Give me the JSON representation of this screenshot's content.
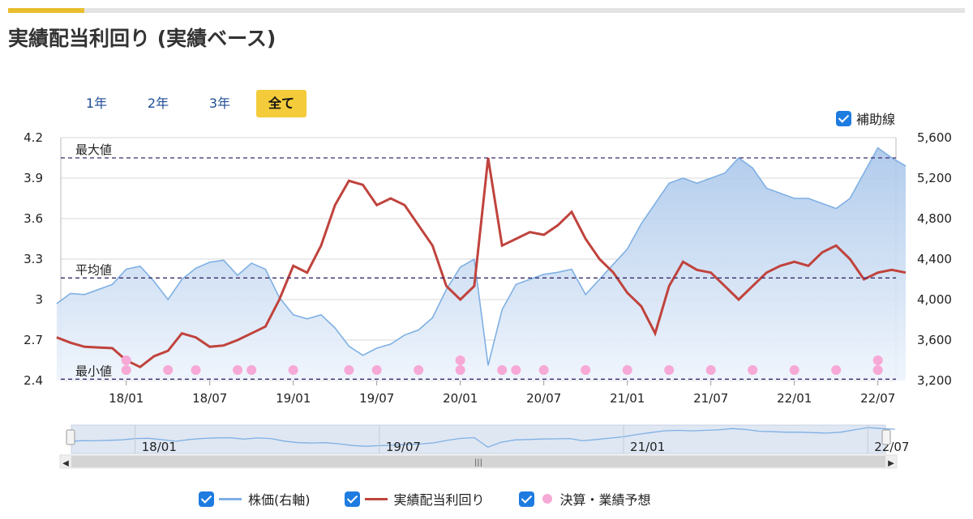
{
  "title": "実績配当利回り (実績ベース)",
  "ranges": [
    "1年",
    "2年",
    "3年",
    "全て"
  ],
  "active_range": "全て",
  "aux_line_label": "補助線",
  "legend": {
    "price": "株価(右軸)",
    "yield": "実績配当利回り",
    "earnings": "決算・業績予想"
  },
  "colors": {
    "accent": "#f4cb3a",
    "price": "#7fb0e3",
    "yield": "#c0433d",
    "earnings": "#f6a9d6",
    "checkbox": "#1e7be0"
  },
  "chart_data": {
    "type": "line",
    "x_ticks": [
      "18/01",
      "18/07",
      "19/01",
      "19/07",
      "20/01",
      "20/07",
      "21/01",
      "21/07",
      "22/01",
      "22/07"
    ],
    "y_left": {
      "label": "",
      "ticks": [
        "2.4",
        "2.7",
        "3",
        "3.3",
        "3.6",
        "3.9",
        "4.2"
      ],
      "range": [
        2.4,
        4.2
      ]
    },
    "y_right": {
      "label": "",
      "ticks": [
        "3,200",
        "3,600",
        "4,000",
        "4,400",
        "4,800",
        "5,200",
        "5,600"
      ],
      "range": [
        3200,
        5600
      ]
    },
    "grid": true,
    "reference_lines": [
      {
        "label": "最大値",
        "value": 4.05
      },
      {
        "label": "平均値",
        "value": 3.16
      },
      {
        "label": "最小値",
        "value": 2.41
      }
    ],
    "series": [
      {
        "name": "株価(右軸)",
        "axis": "right",
        "type": "area",
        "points": [
          [
            "17/08",
            3960
          ],
          [
            "17/09",
            4060
          ],
          [
            "17/10",
            4050
          ],
          [
            "17/12",
            4150
          ],
          [
            "18/01",
            4300
          ],
          [
            "18/02",
            4330
          ],
          [
            "18/03",
            4180
          ],
          [
            "18/04",
            4000
          ],
          [
            "18/05",
            4200
          ],
          [
            "18/06",
            4310
          ],
          [
            "18/07",
            4370
          ],
          [
            "18/08",
            4390
          ],
          [
            "18/09",
            4240
          ],
          [
            "18/10",
            4360
          ],
          [
            "18/11",
            4300
          ],
          [
            "18/12",
            4020
          ],
          [
            "19/01",
            3850
          ],
          [
            "19/02",
            3810
          ],
          [
            "19/03",
            3850
          ],
          [
            "19/04",
            3720
          ],
          [
            "19/05",
            3540
          ],
          [
            "19/06",
            3450
          ],
          [
            "19/07",
            3520
          ],
          [
            "19/08",
            3560
          ],
          [
            "19/09",
            3650
          ],
          [
            "19/10",
            3700
          ],
          [
            "19/11",
            3820
          ],
          [
            "19/12",
            4100
          ],
          [
            "20/01",
            4320
          ],
          [
            "20/02",
            4400
          ],
          [
            "20/03",
            3350
          ],
          [
            "20/04",
            3900
          ],
          [
            "20/05",
            4150
          ],
          [
            "20/06",
            4200
          ],
          [
            "20/07",
            4250
          ],
          [
            "20/08",
            4270
          ],
          [
            "20/09",
            4300
          ],
          [
            "20/10",
            4050
          ],
          [
            "20/11",
            4200
          ],
          [
            "20/12",
            4350
          ],
          [
            "21/01",
            4500
          ],
          [
            "21/02",
            4750
          ],
          [
            "21/03",
            4950
          ],
          [
            "21/04",
            5150
          ],
          [
            "21/05",
            5200
          ],
          [
            "21/06",
            5150
          ],
          [
            "21/07",
            5200
          ],
          [
            "21/08",
            5250
          ],
          [
            "21/09",
            5400
          ],
          [
            "21/10",
            5300
          ],
          [
            "21/11",
            5100
          ],
          [
            "21/12",
            5050
          ],
          [
            "22/01",
            5000
          ],
          [
            "22/02",
            5000
          ],
          [
            "22/03",
            4950
          ],
          [
            "22/04",
            4900
          ],
          [
            "22/05",
            5000
          ],
          [
            "22/06",
            5250
          ],
          [
            "22/07",
            5500
          ],
          [
            "22/08",
            5400
          ],
          [
            "22/09",
            5320
          ]
        ]
      },
      {
        "name": "実績配当利回り",
        "axis": "left",
        "type": "line",
        "points": [
          [
            "17/08",
            2.72
          ],
          [
            "17/09",
            2.68
          ],
          [
            "17/10",
            2.65
          ],
          [
            "17/12",
            2.64
          ],
          [
            "18/01",
            2.55
          ],
          [
            "18/02",
            2.5
          ],
          [
            "18/03",
            2.58
          ],
          [
            "18/04",
            2.62
          ],
          [
            "18/05",
            2.75
          ],
          [
            "18/06",
            2.72
          ],
          [
            "18/07",
            2.65
          ],
          [
            "18/08",
            2.66
          ],
          [
            "18/09",
            2.7
          ],
          [
            "18/10",
            2.75
          ],
          [
            "18/11",
            2.8
          ],
          [
            "18/12",
            3.0
          ],
          [
            "19/01",
            3.25
          ],
          [
            "19/02",
            3.2
          ],
          [
            "19/03",
            3.4
          ],
          [
            "19/04",
            3.7
          ],
          [
            "19/05",
            3.88
          ],
          [
            "19/06",
            3.85
          ],
          [
            "19/07",
            3.7
          ],
          [
            "19/08",
            3.75
          ],
          [
            "19/09",
            3.7
          ],
          [
            "19/10",
            3.55
          ],
          [
            "19/11",
            3.4
          ],
          [
            "19/12",
            3.1
          ],
          [
            "20/01",
            3.0
          ],
          [
            "20/02",
            3.1
          ],
          [
            "20/03",
            4.05
          ],
          [
            "20/04",
            3.4
          ],
          [
            "20/05",
            3.45
          ],
          [
            "20/06",
            3.5
          ],
          [
            "20/07",
            3.48
          ],
          [
            "20/08",
            3.55
          ],
          [
            "20/09",
            3.65
          ],
          [
            "20/10",
            3.45
          ],
          [
            "20/11",
            3.3
          ],
          [
            "20/12",
            3.2
          ],
          [
            "21/01",
            3.05
          ],
          [
            "21/02",
            2.95
          ],
          [
            "21/03",
            2.75
          ],
          [
            "21/04",
            3.1
          ],
          [
            "21/05",
            3.28
          ],
          [
            "21/06",
            3.22
          ],
          [
            "21/07",
            3.2
          ],
          [
            "21/08",
            3.1
          ],
          [
            "21/09",
            3.0
          ],
          [
            "21/10",
            3.1
          ],
          [
            "21/11",
            3.2
          ],
          [
            "21/12",
            3.25
          ],
          [
            "22/01",
            3.28
          ],
          [
            "22/02",
            3.25
          ],
          [
            "22/03",
            3.35
          ],
          [
            "22/04",
            3.4
          ],
          [
            "22/05",
            3.3
          ],
          [
            "22/06",
            3.15
          ],
          [
            "22/07",
            3.2
          ],
          [
            "22/08",
            3.22
          ],
          [
            "22/09",
            3.2
          ]
        ]
      }
    ],
    "earnings_markers": [
      "18/01",
      "18/01",
      "18/04",
      "18/06",
      "18/09",
      "18/10",
      "19/01",
      "19/05",
      "19/07",
      "19/10",
      "20/01",
      "20/01",
      "20/04",
      "20/05",
      "20/07",
      "20/10",
      "21/01",
      "21/04",
      "21/07",
      "21/10",
      "22/01",
      "22/04",
      "22/07",
      "22/07"
    ],
    "navigator": {
      "ticks": [
        "18/01",
        "19/07",
        "21/01",
        "22/07"
      ]
    }
  }
}
